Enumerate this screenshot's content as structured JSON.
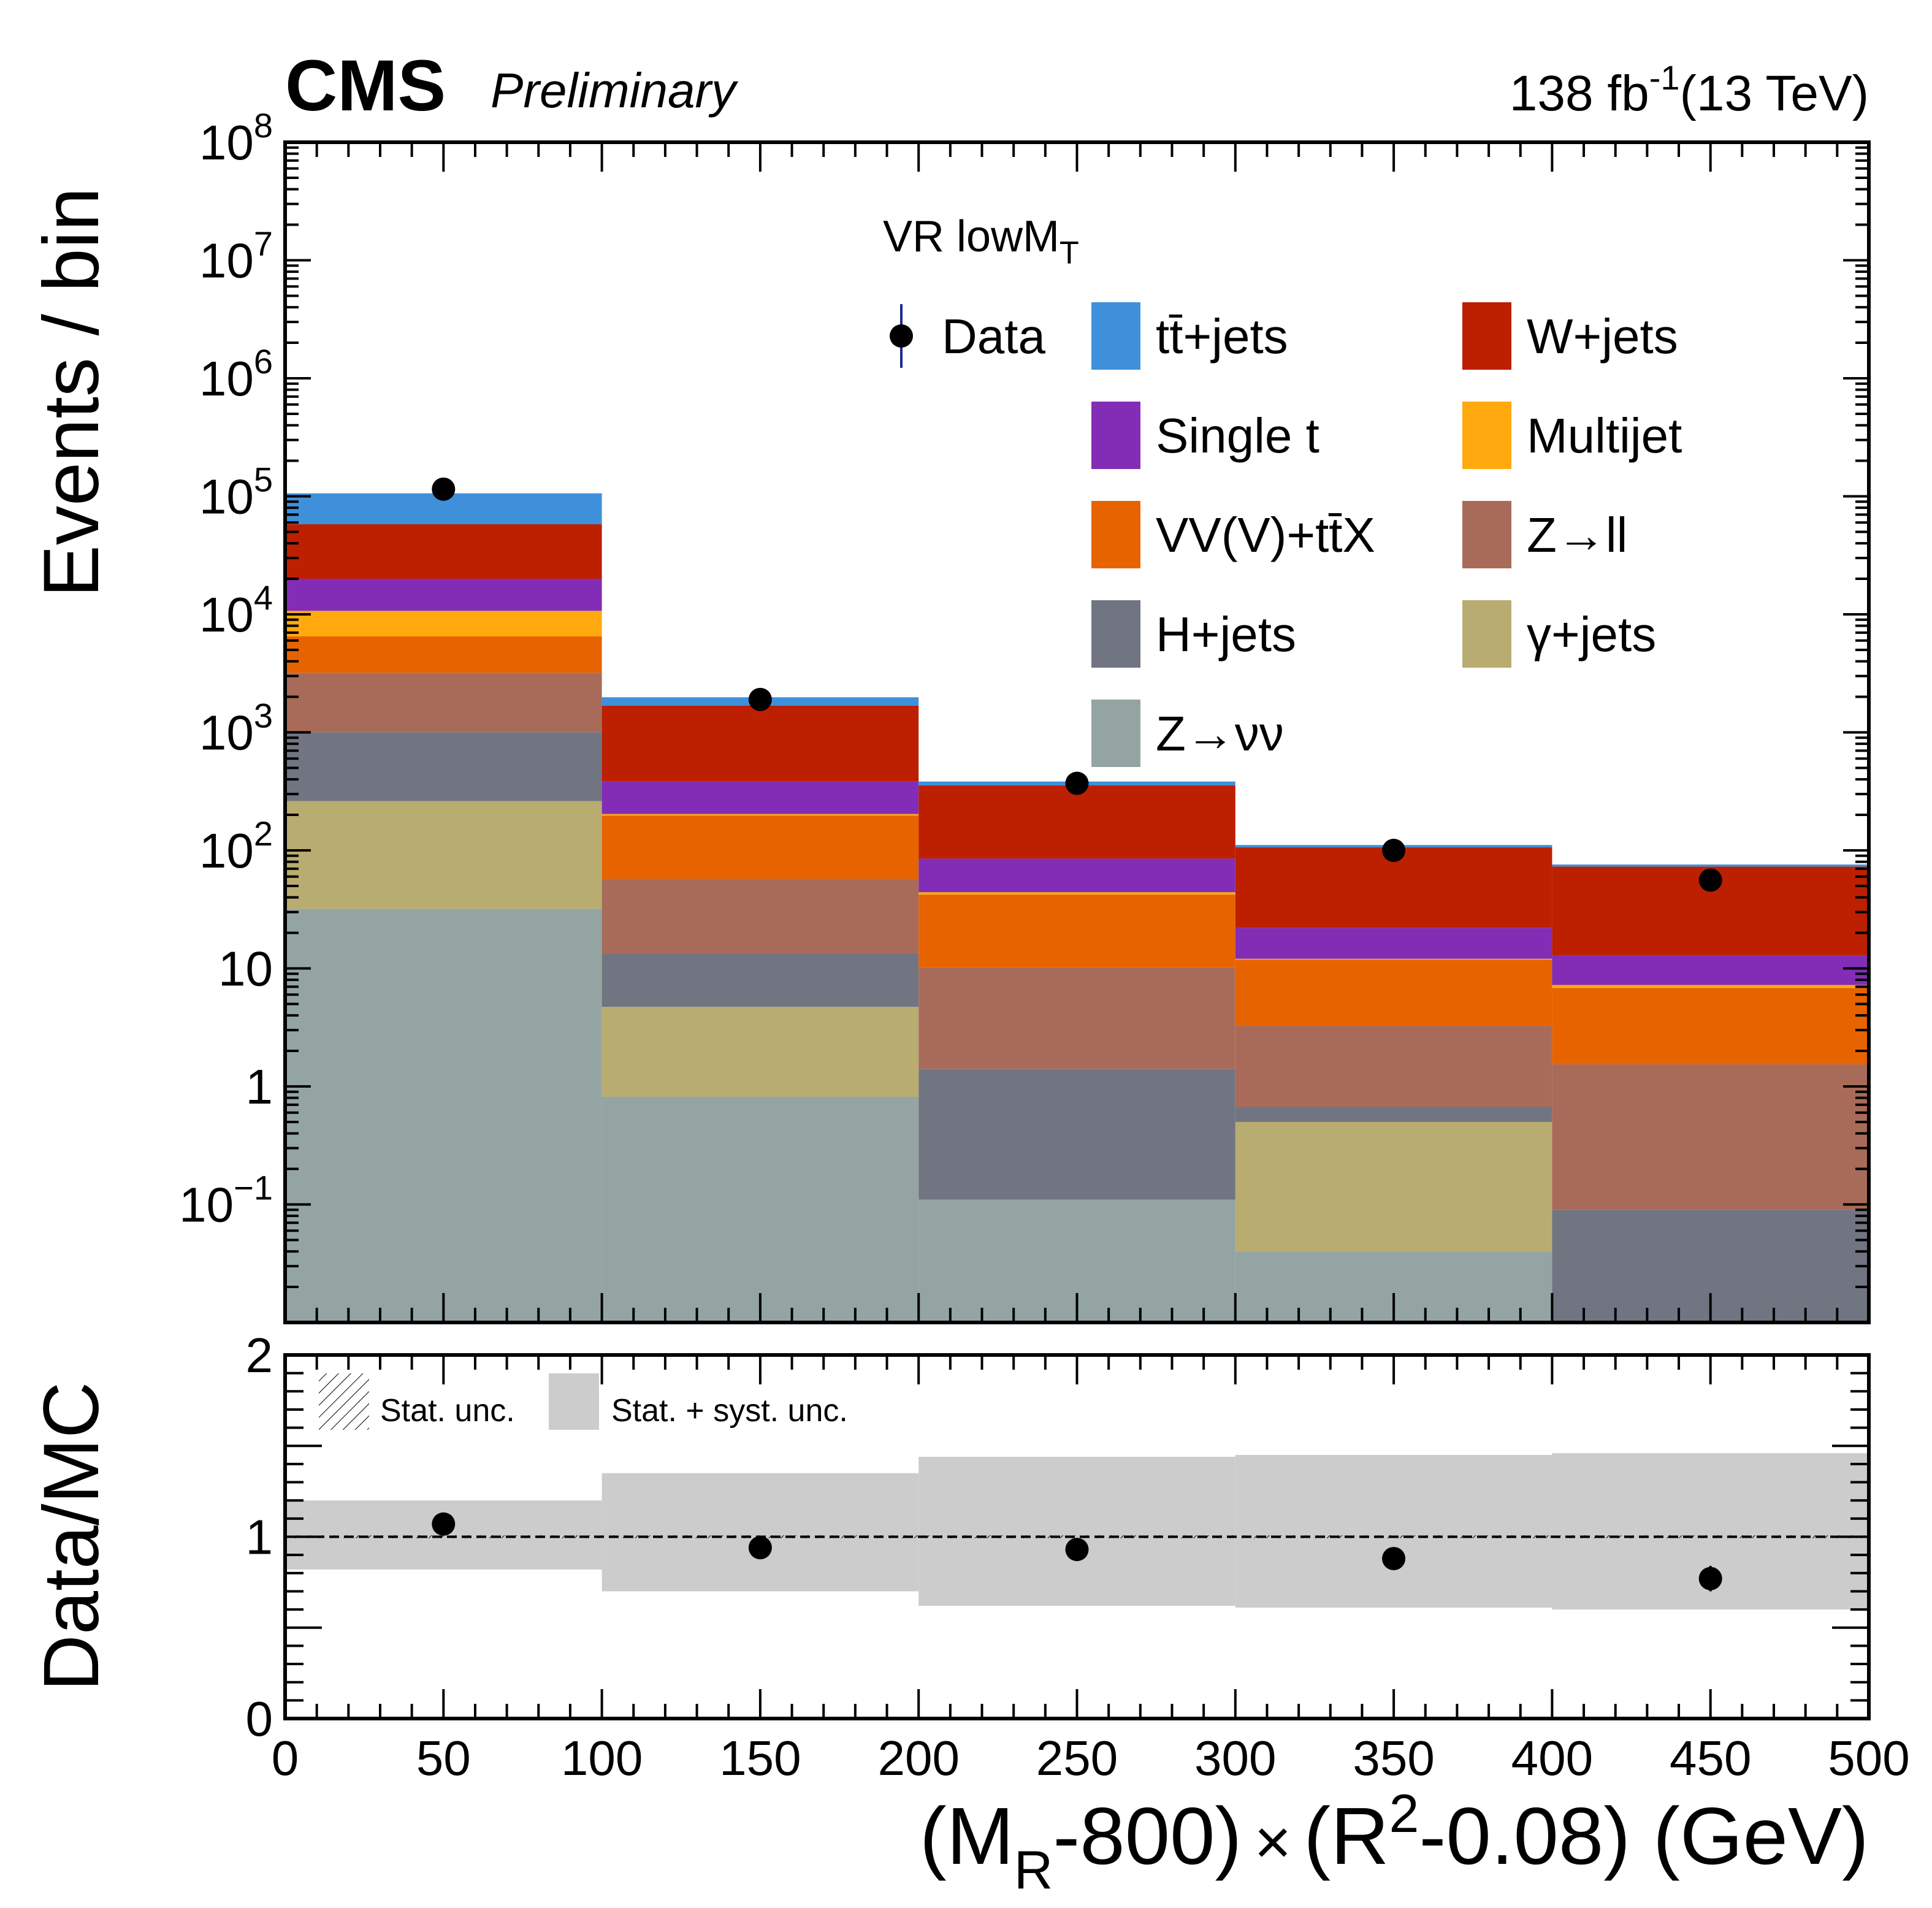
{
  "header": {
    "experiment": "CMS",
    "status": "Preliminary",
    "lumi_value": "138 fb",
    "lumi_exponent": "-1",
    "energy": "(13 TeV)"
  },
  "chart_data": [
    {
      "type": "bar",
      "stacked": true,
      "yscale": "log",
      "region": "VR lowM",
      "region_subscript": "T",
      "ylabel": "Events / bin",
      "xlim": [
        0,
        500
      ],
      "ylim": [
        0.01,
        100000000
      ],
      "y_ticks": [
        {
          "value": 100000000,
          "base": "10",
          "exp": "8"
        },
        {
          "value": 10000000,
          "base": "10",
          "exp": "7"
        },
        {
          "value": 1000000,
          "base": "10",
          "exp": "6"
        },
        {
          "value": 100000,
          "base": "10",
          "exp": "5"
        },
        {
          "value": 10000,
          "base": "10",
          "exp": "4"
        },
        {
          "value": 1000,
          "base": "10",
          "exp": "3"
        },
        {
          "value": 100,
          "base": "10",
          "exp": "2"
        },
        {
          "value": 10,
          "base": "10",
          "exp": ""
        },
        {
          "value": 1,
          "base": "1",
          "exp": ""
        },
        {
          "value": 0.1,
          "base": "10",
          "exp": "−1"
        }
      ],
      "bins": [
        [
          0,
          100
        ],
        [
          100,
          200
        ],
        [
          200,
          300
        ],
        [
          300,
          400
        ],
        [
          400,
          500
        ]
      ],
      "stack_order": "bottom-to-top",
      "series": [
        {
          "name": "Z→νν",
          "color": "#94a4a2",
          "values": [
            32,
            0.82,
            0.11,
            0.04,
            0.0
          ]
        },
        {
          "name": "γ+jets",
          "color": "#b9ac70",
          "values": [
            230,
            3.9,
            0.0,
            0.46,
            0.0
          ]
        },
        {
          "name": "H+jets",
          "color": "#717581",
          "values": [
            740,
            8.6,
            1.3,
            0.17,
            0.09
          ]
        },
        {
          "name": "Z→ll",
          "color": "#a96b59",
          "values": [
            2200,
            44,
            8.8,
            2.6,
            1.45
          ]
        },
        {
          "name": "VV(V)+tt̄X",
          "color": "#e76300",
          "values": [
            3300,
            140,
            32,
            8.6,
            5.3
          ]
        },
        {
          "name": "Multijet",
          "color": "#ffa90e",
          "values": [
            4200,
            6,
            2,
            0.2,
            0.4
          ]
        },
        {
          "name": "Single t",
          "color": "#832db6",
          "values": [
            9300,
            180,
            41,
            10,
            5.7
          ]
        },
        {
          "name": "W+jets",
          "color": "#bd1f01",
          "values": [
            38000,
            1300,
            270,
            84,
            60
          ]
        },
        {
          "name": "tt̄+jets",
          "color": "#3f90da",
          "values": [
            48000,
            300,
            28,
            5,
            3
          ]
        }
      ],
      "data": {
        "name": "Data",
        "x": [
          50,
          150,
          250,
          350,
          450
        ],
        "y": [
          115000,
          1900,
          370,
          100,
          56
        ]
      },
      "legend": {
        "position": "top-right",
        "entries": [
          {
            "label": "Data",
            "kind": "marker"
          },
          {
            "label": "tt̄+jets",
            "color": "#3f90da"
          },
          {
            "label": "W+jets",
            "color": "#bd1f01"
          },
          {
            "label": "Single t",
            "color": "#832db6"
          },
          {
            "label": "Multijet",
            "color": "#ffa90e"
          },
          {
            "label": "VV(V)+tt̄X",
            "color": "#e76300"
          },
          {
            "label": "Z→ll",
            "color": "#a96b59"
          },
          {
            "label": "H+jets",
            "color": "#717581"
          },
          {
            "label": "γ+jets",
            "color": "#b9ac70"
          },
          {
            "label": "Z→νν",
            "color": "#94a4a2"
          }
        ]
      }
    },
    {
      "type": "scatter",
      "ylabel": "Data/MC",
      "ylim": [
        0,
        2
      ],
      "y_ticks": [
        "0",
        "1",
        "2"
      ],
      "xlim": [
        0,
        500
      ],
      "x_ticks": [
        "0",
        "50",
        "100",
        "150",
        "200",
        "250",
        "300",
        "350",
        "400",
        "450",
        "500"
      ],
      "reference_line": 1,
      "band_color": "#cccccc",
      "band_label": "Stat. + syst. unc.",
      "hatch_label": "Stat. unc.",
      "band": [
        {
          "lo": 0.82,
          "hi": 1.2
        },
        {
          "lo": 0.7,
          "hi": 1.35
        },
        {
          "lo": 0.62,
          "hi": 1.44
        },
        {
          "lo": 0.61,
          "hi": 1.45
        },
        {
          "lo": 0.6,
          "hi": 1.46
        }
      ],
      "points": {
        "x": [
          50,
          150,
          250,
          350,
          450
        ],
        "y": [
          1.07,
          0.94,
          0.93,
          0.88,
          0.77
        ],
        "err": [
          0.01,
          0.02,
          0.04,
          0.06,
          0.07
        ]
      },
      "xlabel": {
        "pre": "(M",
        "sub": "R",
        "mid": "-800)",
        "times": "×",
        "r": "(R",
        "sup": "2",
        "post": "-0.08) (GeV)"
      }
    }
  ]
}
